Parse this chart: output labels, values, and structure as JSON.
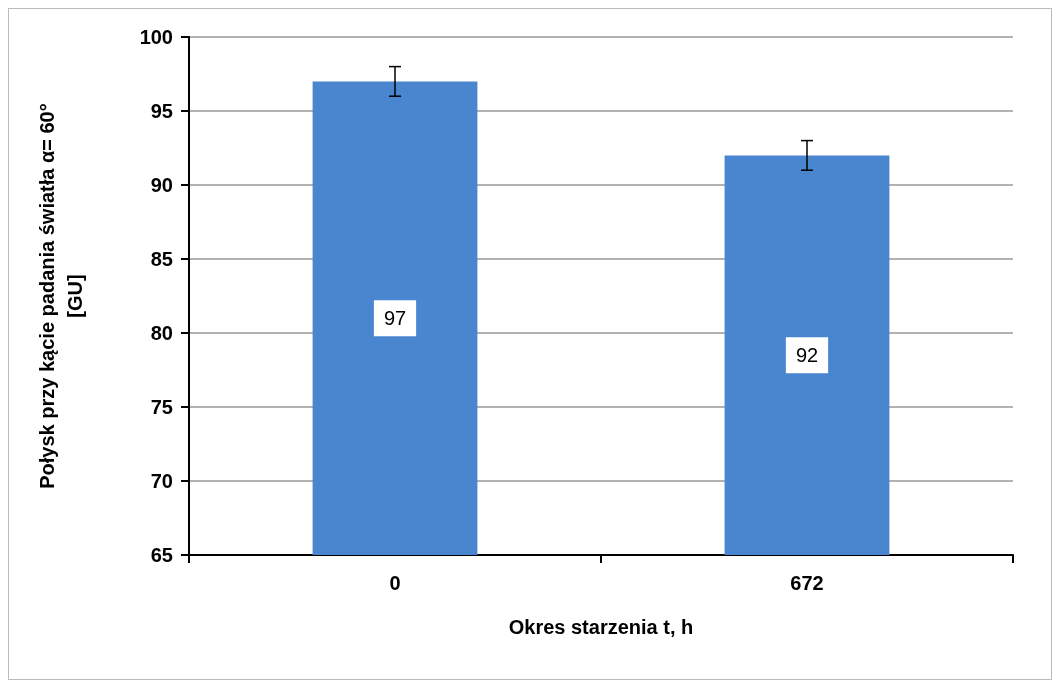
{
  "chart_data": {
    "type": "bar",
    "xlabel": "Okres starzenia t, h",
    "ylabel": "Połysk przy kącie padania światła α= 60° [GU]",
    "categories": [
      "0",
      "672"
    ],
    "series": [
      {
        "color": "#4a86d0",
        "values": [
          97,
          92
        ],
        "errors": [
          1,
          1
        ]
      }
    ],
    "data_labels": true,
    "ylim": [
      65,
      100
    ],
    "yticks": [
      65,
      70,
      75,
      80,
      85,
      90,
      95,
      100
    ],
    "grid": "y"
  }
}
